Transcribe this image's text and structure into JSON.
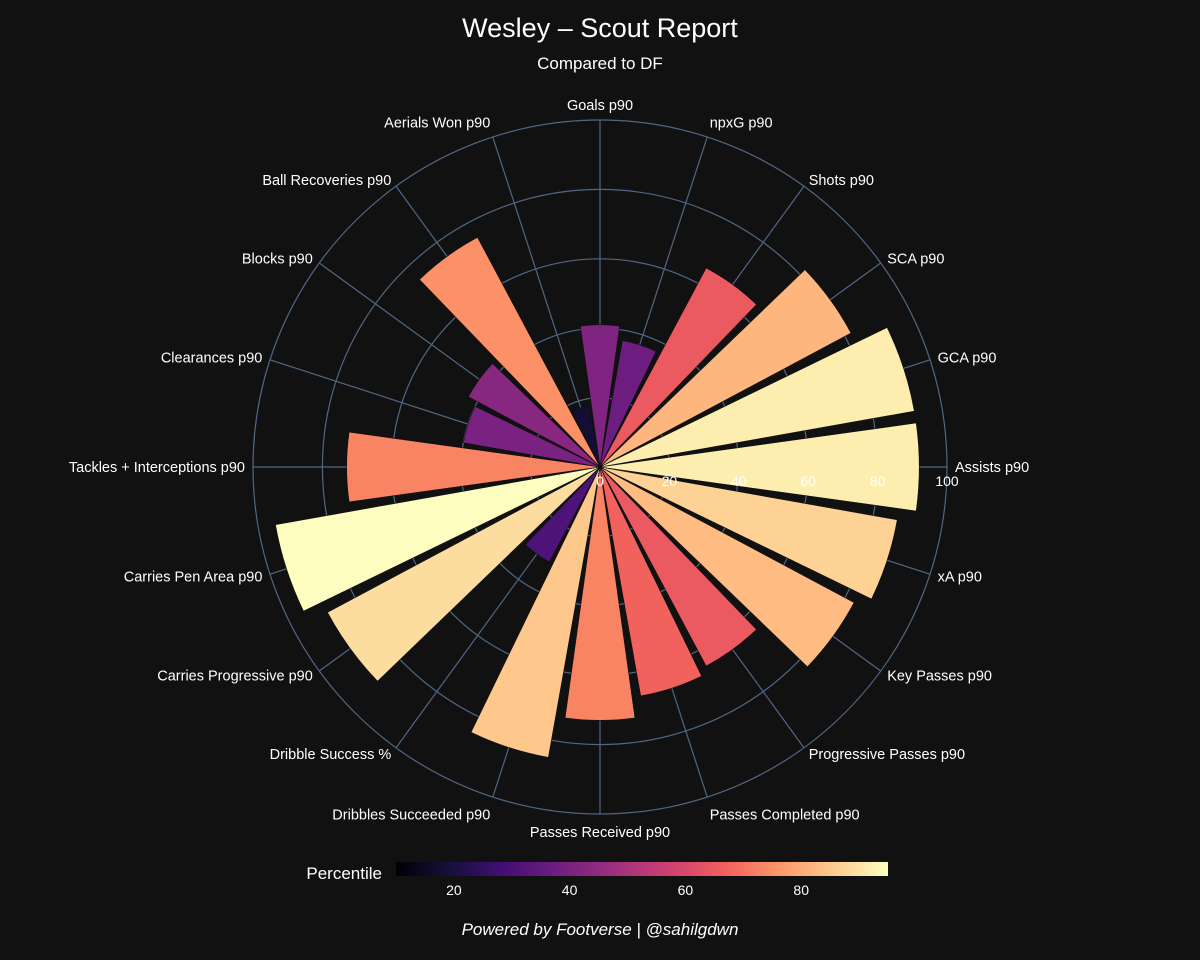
{
  "chart_data": {
    "type": "barpolar",
    "title": "Wesley – Scout Report",
    "subtitle": "Compared to DF",
    "categories": [
      "Goals p90",
      "npxG p90",
      "Shots p90",
      "SCA p90",
      "GCA p90",
      "Assists p90",
      "xA p90",
      "Key Passes p90",
      "Progressive Passes p90",
      "Passes Completed p90",
      "Passes Received p90",
      "Dribbles Succeeded p90",
      "Dribble Success %",
      "Carries Progressive p90",
      "Carries Pen Area p90",
      "Tackles + Interceptions p90",
      "Clearances p90",
      "Blocks p90",
      "Ball Recoveries p90",
      "Aerials Won p90"
    ],
    "values": [
      41,
      37,
      65,
      82,
      92,
      92,
      87,
      83,
      65,
      67,
      73,
      85,
      31,
      89,
      95,
      73,
      40,
      43,
      75,
      18
    ],
    "radial_axis": {
      "range": [
        0,
        100
      ],
      "ticks": [
        0,
        20,
        40,
        60,
        80,
        100
      ]
    },
    "colorbar": {
      "title": "Percentile",
      "range": [
        10,
        95
      ],
      "ticks": [
        20,
        40,
        60,
        80
      ],
      "colorscale": "magma"
    },
    "grid": true
  },
  "footer": "Powered by Footverse | @sahilgdwn"
}
